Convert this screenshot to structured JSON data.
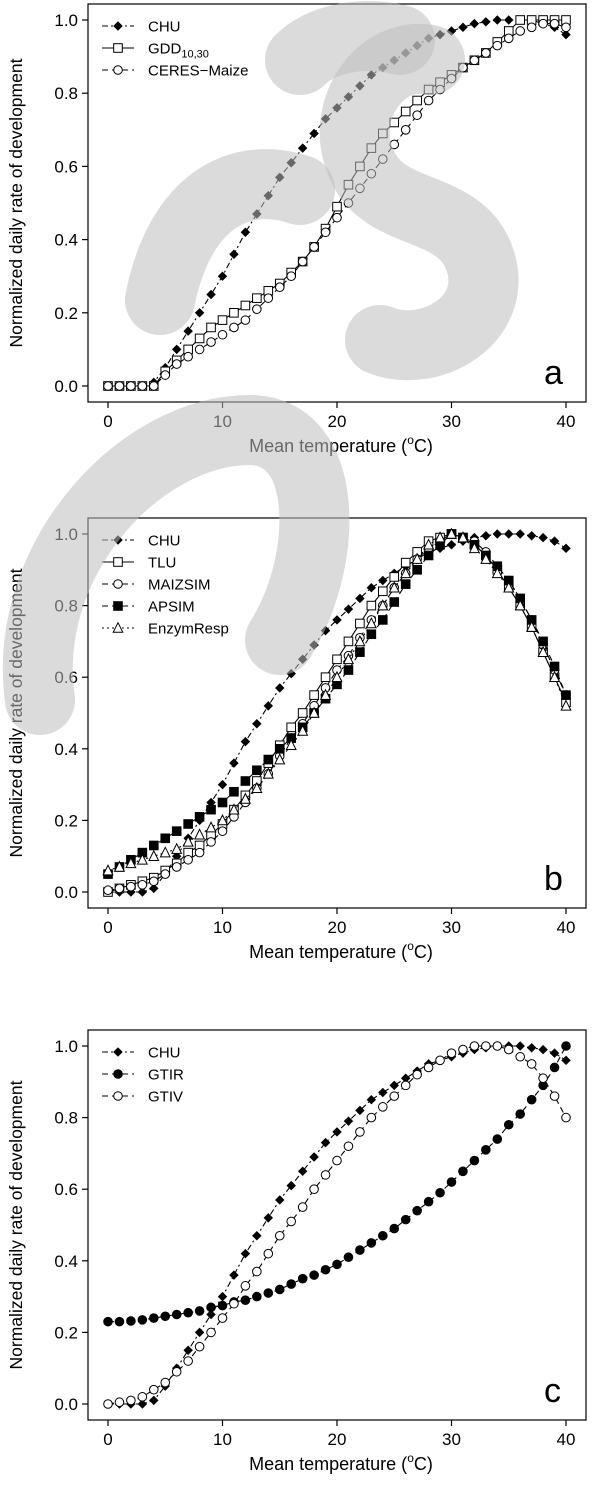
{
  "chart_data": [
    {
      "type": "line",
      "panel_label": "a",
      "xlabel": "Mean temperature (",
      "xlabel_deg": "o",
      "xlabel_unit": "C)",
      "ylabel": "Normalized daily rate of development",
      "xlim": [
        0,
        40
      ],
      "ylim": [
        0,
        1.0
      ],
      "xticks": [
        "0",
        "10",
        "20",
        "30",
        "40"
      ],
      "yticks": [
        "0.0",
        "0.2",
        "0.4",
        "0.6",
        "0.8",
        "1.0"
      ],
      "legend_position": "top-left",
      "x": [
        0,
        1,
        2,
        3,
        4,
        5,
        6,
        7,
        8,
        9,
        10,
        11,
        12,
        13,
        14,
        15,
        16,
        17,
        18,
        19,
        20,
        21,
        22,
        23,
        24,
        25,
        26,
        27,
        28,
        29,
        30,
        31,
        32,
        33,
        34,
        35,
        36,
        37,
        38,
        39,
        40
      ],
      "series": [
        {
          "name": "CHU",
          "marker": "diamond-filled",
          "dash": "6,3,2,3",
          "values": [
            0,
            0,
            0,
            0,
            0.01,
            0.05,
            0.1,
            0.15,
            0.2,
            0.25,
            0.3,
            0.36,
            0.42,
            0.47,
            0.52,
            0.57,
            0.61,
            0.65,
            0.69,
            0.73,
            0.76,
            0.79,
            0.82,
            0.85,
            0.87,
            0.89,
            0.91,
            0.93,
            0.95,
            0.96,
            0.97,
            0.98,
            0.99,
            0.995,
            1.0,
            1.0,
            1.0,
            1.0,
            0.99,
            0.98,
            0.96
          ]
        },
        {
          "name": "GDD",
          "name_sub": "10,30",
          "marker": "square-open",
          "dash": "",
          "values": [
            0,
            0,
            0,
            0,
            0,
            0.04,
            0.07,
            0.1,
            0.13,
            0.16,
            0.18,
            0.2,
            0.22,
            0.24,
            0.26,
            0.28,
            0.31,
            0.34,
            0.38,
            0.43,
            0.49,
            0.55,
            0.6,
            0.65,
            0.69,
            0.72,
            0.75,
            0.78,
            0.81,
            0.83,
            0.85,
            0.87,
            0.89,
            0.91,
            0.94,
            0.97,
            1.0,
            1.0,
            1.0,
            1.0,
            1.0
          ]
        },
        {
          "name": "CERES−Maize",
          "marker": "circle-open",
          "dash": "6,4",
          "values": [
            0,
            0,
            0,
            0,
            0,
            0.03,
            0.06,
            0.08,
            0.1,
            0.12,
            0.14,
            0.16,
            0.18,
            0.21,
            0.24,
            0.27,
            0.3,
            0.34,
            0.38,
            0.42,
            0.46,
            0.5,
            0.54,
            0.58,
            0.62,
            0.66,
            0.7,
            0.74,
            0.78,
            0.81,
            0.84,
            0.87,
            0.89,
            0.91,
            0.93,
            0.95,
            0.97,
            0.98,
            0.99,
            0.99,
            0.98
          ]
        }
      ]
    },
    {
      "type": "line",
      "panel_label": "b",
      "xlabel": "Mean temperature (",
      "xlabel_deg": "o",
      "xlabel_unit": "C)",
      "ylabel": "Normalized daily rate of development",
      "xlim": [
        0,
        40
      ],
      "ylim": [
        0,
        1.0
      ],
      "xticks": [
        "0",
        "10",
        "20",
        "30",
        "40"
      ],
      "yticks": [
        "0.0",
        "0.2",
        "0.4",
        "0.6",
        "0.8",
        "1.0"
      ],
      "legend_position": "top-left",
      "x": [
        0,
        1,
        2,
        3,
        4,
        5,
        6,
        7,
        8,
        9,
        10,
        11,
        12,
        13,
        14,
        15,
        16,
        17,
        18,
        19,
        20,
        21,
        22,
        23,
        24,
        25,
        26,
        27,
        28,
        29,
        30,
        31,
        32,
        33,
        34,
        35,
        36,
        37,
        38,
        39,
        40
      ],
      "series": [
        {
          "name": "CHU",
          "marker": "diamond-filled",
          "dash": "6,3,2,3",
          "values": [
            0,
            0,
            0,
            0,
            0.01,
            0.05,
            0.1,
            0.15,
            0.2,
            0.25,
            0.3,
            0.36,
            0.42,
            0.47,
            0.52,
            0.57,
            0.61,
            0.65,
            0.69,
            0.73,
            0.76,
            0.79,
            0.82,
            0.85,
            0.87,
            0.89,
            0.91,
            0.93,
            0.95,
            0.96,
            0.97,
            0.98,
            0.99,
            0.995,
            1.0,
            1.0,
            1.0,
            0.995,
            0.99,
            0.98,
            0.96
          ]
        },
        {
          "name": "TLU",
          "marker": "square-open",
          "dash": "",
          "values": [
            0,
            0.01,
            0.02,
            0.03,
            0.04,
            0.06,
            0.08,
            0.11,
            0.13,
            0.16,
            0.19,
            0.23,
            0.27,
            0.31,
            0.36,
            0.41,
            0.46,
            0.5,
            0.55,
            0.6,
            0.65,
            0.7,
            0.75,
            0.8,
            0.84,
            0.88,
            0.92,
            0.95,
            0.98,
            0.99,
            1.0,
            0.99,
            0.97,
            0.94,
            0.9,
            0.85,
            0.8,
            0.74,
            0.67,
            0.6,
            0.53
          ]
        },
        {
          "name": "MAIZSIM",
          "marker": "circle-open",
          "dash": "6,4",
          "values": [
            0.005,
            0.01,
            0.015,
            0.02,
            0.03,
            0.05,
            0.07,
            0.09,
            0.11,
            0.14,
            0.17,
            0.21,
            0.25,
            0.29,
            0.33,
            0.38,
            0.43,
            0.47,
            0.52,
            0.57,
            0.62,
            0.66,
            0.71,
            0.76,
            0.8,
            0.85,
            0.89,
            0.93,
            0.96,
            0.98,
            1.0,
            0.99,
            0.98,
            0.95,
            0.91,
            0.87,
            0.82,
            0.76,
            0.69,
            0.62,
            0.55
          ]
        },
        {
          "name": "APSIM",
          "marker": "square-filled",
          "dash": "6,4",
          "values": [
            0.05,
            0.07,
            0.09,
            0.11,
            0.13,
            0.15,
            0.17,
            0.19,
            0.21,
            0.23,
            0.25,
            0.28,
            0.31,
            0.34,
            0.37,
            0.4,
            0.43,
            0.46,
            0.5,
            0.54,
            0.58,
            0.62,
            0.67,
            0.72,
            0.76,
            0.81,
            0.86,
            0.9,
            0.94,
            0.97,
            1.0,
            0.99,
            0.97,
            0.94,
            0.91,
            0.87,
            0.82,
            0.76,
            0.7,
            0.63,
            0.55
          ]
        },
        {
          "name": "EnzymResp",
          "marker": "triangle-open",
          "dash": "2,3",
          "values": [
            0.06,
            0.07,
            0.08,
            0.09,
            0.1,
            0.11,
            0.12,
            0.14,
            0.16,
            0.18,
            0.2,
            0.23,
            0.26,
            0.29,
            0.33,
            0.37,
            0.41,
            0.45,
            0.5,
            0.55,
            0.6,
            0.65,
            0.7,
            0.75,
            0.8,
            0.85,
            0.89,
            0.93,
            0.97,
            0.99,
            1.0,
            0.99,
            0.96,
            0.93,
            0.89,
            0.85,
            0.8,
            0.74,
            0.67,
            0.6,
            0.52
          ]
        }
      ]
    },
    {
      "type": "line",
      "panel_label": "c",
      "xlabel": "Mean temperature (",
      "xlabel_deg": "o",
      "xlabel_unit": "C)",
      "ylabel": "Normalized daily rate of development",
      "xlim": [
        0,
        40
      ],
      "ylim": [
        0,
        1.0
      ],
      "xticks": [
        "0",
        "10",
        "20",
        "30",
        "40"
      ],
      "yticks": [
        "0.0",
        "0.2",
        "0.4",
        "0.6",
        "0.8",
        "1.0"
      ],
      "legend_position": "top-left",
      "x": [
        0,
        1,
        2,
        3,
        4,
        5,
        6,
        7,
        8,
        9,
        10,
        11,
        12,
        13,
        14,
        15,
        16,
        17,
        18,
        19,
        20,
        21,
        22,
        23,
        24,
        25,
        26,
        27,
        28,
        29,
        30,
        31,
        32,
        33,
        34,
        35,
        36,
        37,
        38,
        39,
        40
      ],
      "series": [
        {
          "name": "CHU",
          "marker": "diamond-filled",
          "dash": "6,3,2,3",
          "values": [
            0,
            0,
            0,
            0,
            0.01,
            0.05,
            0.1,
            0.15,
            0.2,
            0.25,
            0.3,
            0.36,
            0.42,
            0.47,
            0.52,
            0.57,
            0.61,
            0.65,
            0.69,
            0.73,
            0.76,
            0.79,
            0.82,
            0.85,
            0.87,
            0.89,
            0.91,
            0.93,
            0.95,
            0.96,
            0.97,
            0.98,
            0.99,
            0.995,
            1.0,
            1.0,
            1.0,
            0.995,
            0.99,
            0.98,
            0.96
          ]
        },
        {
          "name": "GTIR",
          "marker": "circle-filled",
          "dash": "6,4",
          "values": [
            0.23,
            0.23,
            0.232,
            0.235,
            0.24,
            0.245,
            0.25,
            0.255,
            0.26,
            0.27,
            0.275,
            0.285,
            0.29,
            0.3,
            0.31,
            0.32,
            0.335,
            0.35,
            0.36,
            0.375,
            0.39,
            0.41,
            0.43,
            0.45,
            0.47,
            0.49,
            0.515,
            0.54,
            0.565,
            0.59,
            0.62,
            0.65,
            0.68,
            0.71,
            0.74,
            0.78,
            0.81,
            0.85,
            0.89,
            0.94,
            1.0
          ]
        },
        {
          "name": "GTIV",
          "marker": "circle-open",
          "dash": "6,4",
          "values": [
            0,
            0.005,
            0.01,
            0.02,
            0.04,
            0.06,
            0.09,
            0.12,
            0.16,
            0.2,
            0.24,
            0.28,
            0.33,
            0.37,
            0.42,
            0.47,
            0.51,
            0.55,
            0.6,
            0.64,
            0.68,
            0.72,
            0.76,
            0.8,
            0.83,
            0.86,
            0.89,
            0.92,
            0.94,
            0.96,
            0.98,
            0.99,
            1.0,
            1.0,
            1.0,
            0.99,
            0.97,
            0.95,
            0.91,
            0.86,
            0.8
          ]
        }
      ]
    }
  ]
}
